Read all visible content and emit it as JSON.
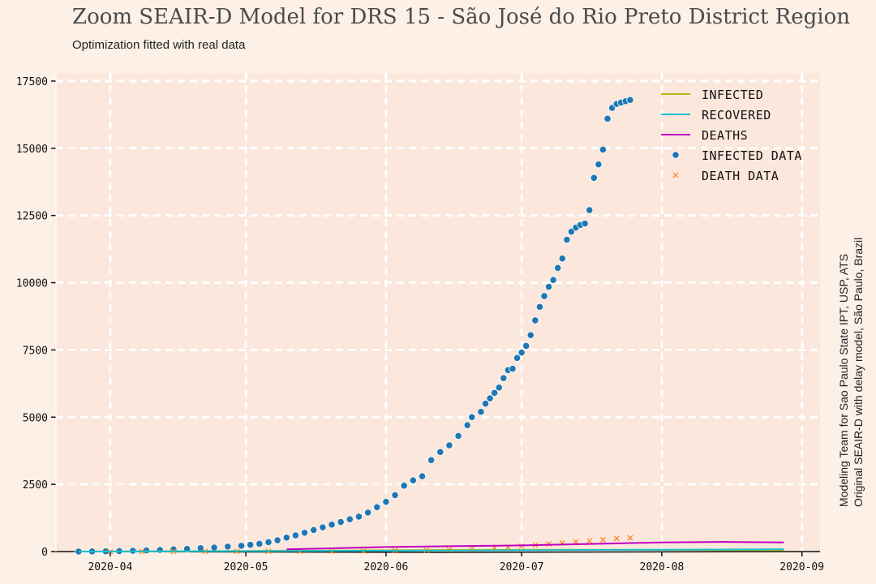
{
  "header": {
    "title": "Zoom SEAIR-D Model for DRS 15 - São José do Rio Preto District Region",
    "subtitle": "Optimization fitted with real data"
  },
  "side_note": {
    "line1": "Modeling Team for Sao Paulo State IPT, USP, ATS",
    "line2": "Original SEAIR-D with delay model, São Paulo, Brazil"
  },
  "colors": {
    "infected": "#b5bd17",
    "recovered": "#17becf",
    "deaths": "#c000c0",
    "infected_data": "#1f77b4",
    "death_data": "#ff7f0e",
    "plot_bg": "#fbe7dc",
    "grid": "#ffffff"
  },
  "chart_data": {
    "type": "scatter",
    "title": "Zoom SEAIR-D Model for DRS 15 - São José do Rio Preto District Region",
    "subtitle": "Optimization fitted with real data",
    "xlabel": "",
    "ylabel": "",
    "x_axis_type": "date",
    "xlim": [
      "2020-03-20",
      "2020-09-05"
    ],
    "ylim": [
      0,
      17800
    ],
    "x_ticks": [
      "2020-04",
      "2020-05",
      "2020-06",
      "2020-07",
      "2020-08",
      "2020-09"
    ],
    "y_ticks": [
      0,
      2500,
      5000,
      7500,
      10000,
      12500,
      15000,
      17500
    ],
    "grid": true,
    "legend_position": "top-right",
    "legend": [
      "Infected",
      "Recovered",
      "Deaths",
      "Infected data",
      "Death data"
    ],
    "series": [
      {
        "name": "Infected data",
        "kind": "scatter-dot",
        "x": [
          "2020-03-25",
          "2020-03-28",
          "2020-03-31",
          "2020-04-03",
          "2020-04-06",
          "2020-04-09",
          "2020-04-12",
          "2020-04-15",
          "2020-04-18",
          "2020-04-21",
          "2020-04-24",
          "2020-04-27",
          "2020-04-30",
          "2020-05-02",
          "2020-05-04",
          "2020-05-06",
          "2020-05-08",
          "2020-05-10",
          "2020-05-12",
          "2020-05-14",
          "2020-05-16",
          "2020-05-18",
          "2020-05-20",
          "2020-05-22",
          "2020-05-24",
          "2020-05-26",
          "2020-05-28",
          "2020-05-30",
          "2020-06-01",
          "2020-06-03",
          "2020-06-05",
          "2020-06-07",
          "2020-06-09",
          "2020-06-11",
          "2020-06-13",
          "2020-06-15",
          "2020-06-17",
          "2020-06-19",
          "2020-06-20",
          "2020-06-22",
          "2020-06-23",
          "2020-06-24",
          "2020-06-25",
          "2020-06-26",
          "2020-06-27",
          "2020-06-28",
          "2020-06-29",
          "2020-06-30",
          "2020-07-01",
          "2020-07-02",
          "2020-07-03",
          "2020-07-04",
          "2020-07-05",
          "2020-07-06",
          "2020-07-07",
          "2020-07-08",
          "2020-07-09",
          "2020-07-10",
          "2020-07-11",
          "2020-07-12",
          "2020-07-13",
          "2020-07-14",
          "2020-07-15",
          "2020-07-16",
          "2020-07-17",
          "2020-07-18",
          "2020-07-19",
          "2020-07-20",
          "2020-07-21",
          "2020-07-22",
          "2020-07-23",
          "2020-07-24",
          "2020-07-25"
        ],
        "y": [
          2,
          5,
          10,
          18,
          30,
          45,
          60,
          80,
          100,
          125,
          150,
          185,
          215,
          250,
          290,
          350,
          420,
          520,
          600,
          700,
          800,
          900,
          1000,
          1100,
          1200,
          1300,
          1450,
          1650,
          1850,
          2100,
          2450,
          2650,
          2800,
          3400,
          3700,
          3950,
          4300,
          4700,
          5000,
          5200,
          5500,
          5700,
          5900,
          6100,
          6450,
          6750,
          6800,
          7200,
          7400,
          7650,
          8050,
          8600,
          9100,
          9500,
          9850,
          10100,
          10550,
          10900,
          11600,
          11900,
          12050,
          12150,
          12200,
          12700,
          13900,
          14400,
          14950,
          16100,
          16500,
          16650,
          16700,
          16750,
          16800
        ]
      },
      {
        "name": "Death data",
        "kind": "scatter-x",
        "x": [
          "2020-04-01",
          "2020-04-08",
          "2020-04-15",
          "2020-04-22",
          "2020-04-29",
          "2020-05-06",
          "2020-05-13",
          "2020-05-20",
          "2020-05-27",
          "2020-06-03",
          "2020-06-10",
          "2020-06-15",
          "2020-06-20",
          "2020-06-25",
          "2020-06-28",
          "2020-07-01",
          "2020-07-04",
          "2020-07-07",
          "2020-07-10",
          "2020-07-13",
          "2020-07-16",
          "2020-07-19",
          "2020-07-22",
          "2020-07-25"
        ],
        "y": [
          0,
          1,
          2,
          3,
          5,
          8,
          12,
          18,
          25,
          35,
          50,
          70,
          95,
          130,
          160,
          200,
          240,
          280,
          320,
          360,
          400,
          440,
          480,
          510
        ]
      },
      {
        "name": "Infected",
        "kind": "line",
        "x": [
          "2020-03-25",
          "2020-04-15",
          "2020-05-15",
          "2020-06-15",
          "2020-07-15",
          "2020-08-01",
          "2020-08-15",
          "2020-08-28"
        ],
        "y": [
          0,
          10,
          30,
          60,
          70,
          60,
          50,
          45
        ]
      },
      {
        "name": "Recovered",
        "kind": "line",
        "x": [
          "2020-03-25",
          "2020-04-15",
          "2020-05-15",
          "2020-06-15",
          "2020-07-15",
          "2020-08-01",
          "2020-08-15",
          "2020-08-28"
        ],
        "y": [
          0,
          5,
          20,
          40,
          60,
          70,
          75,
          80
        ]
      },
      {
        "name": "Deaths",
        "kind": "line",
        "x": [
          "2020-05-10",
          "2020-05-20",
          "2020-06-01",
          "2020-06-15",
          "2020-07-01",
          "2020-07-15",
          "2020-08-01",
          "2020-08-15",
          "2020-08-28"
        ],
        "y": [
          80,
          120,
          170,
          200,
          230,
          280,
          340,
          360,
          340
        ]
      }
    ]
  }
}
